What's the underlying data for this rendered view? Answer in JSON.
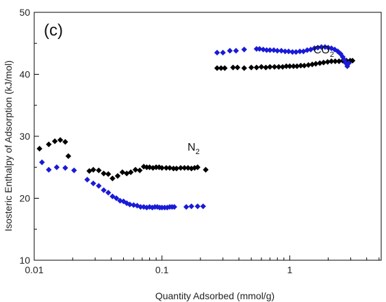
{
  "chart_data": {
    "type": "scatter",
    "panel_label": "(c)",
    "xlabel": "Quantity Adsorbed (mmol/g)",
    "ylabel": "Isosteric Enthalpy of Adsorption (kJ/mol)",
    "xscale": "log",
    "xlim": [
      0.01,
      5.2
    ],
    "ylim": [
      10,
      50
    ],
    "x_ticks": [
      0.01,
      0.1,
      1
    ],
    "x_tick_labels": [
      "0.01",
      "0.1",
      "1"
    ],
    "y_ticks": [
      10,
      20,
      30,
      40,
      50
    ],
    "y_tick_labels": [
      "10",
      "20",
      "30",
      "40",
      "50"
    ],
    "grid": false,
    "legend": "none",
    "annotations": [
      {
        "main": "CO",
        "sub": "2"
      },
      {
        "main": "N",
        "sub": "2"
      }
    ],
    "series": [
      {
        "color": "#000000",
        "marker": "diamond",
        "points": [
          [
            0.011,
            28.0
          ],
          [
            0.013,
            28.7
          ],
          [
            0.0145,
            29.2
          ],
          [
            0.016,
            29.4
          ],
          [
            0.0175,
            29.1
          ],
          [
            0.0185,
            26.8
          ],
          [
            0.027,
            24.4
          ],
          [
            0.029,
            24.6
          ],
          [
            0.032,
            24.5
          ],
          [
            0.035,
            24.0
          ],
          [
            0.038,
            23.9
          ],
          [
            0.041,
            23.2
          ],
          [
            0.045,
            23.6
          ],
          [
            0.049,
            24.2
          ],
          [
            0.053,
            24.0
          ],
          [
            0.057,
            24.2
          ],
          [
            0.062,
            24.6
          ],
          [
            0.067,
            24.5
          ],
          [
            0.072,
            25.1
          ],
          [
            0.076,
            25.0
          ],
          [
            0.08,
            25.0
          ],
          [
            0.085,
            24.9
          ],
          [
            0.09,
            25.0
          ],
          [
            0.095,
            25.0
          ],
          [
            0.1,
            24.9
          ],
          [
            0.108,
            24.9
          ],
          [
            0.115,
            24.9
          ],
          [
            0.123,
            24.8
          ],
          [
            0.13,
            24.8
          ],
          [
            0.14,
            24.9
          ],
          [
            0.15,
            24.9
          ],
          [
            0.16,
            24.9
          ],
          [
            0.17,
            24.8
          ],
          [
            0.18,
            24.9
          ],
          [
            0.19,
            25.0
          ],
          [
            0.22,
            24.6
          ],
          [
            0.27,
            41.0
          ],
          [
            0.29,
            41.0
          ],
          [
            0.31,
            41.0
          ],
          [
            0.36,
            41.1
          ],
          [
            0.39,
            41.1
          ],
          [
            0.44,
            41.0
          ],
          [
            0.5,
            41.1
          ],
          [
            0.55,
            41.1
          ],
          [
            0.6,
            41.2
          ],
          [
            0.65,
            41.1
          ],
          [
            0.7,
            41.2
          ],
          [
            0.76,
            41.2
          ],
          [
            0.82,
            41.2
          ],
          [
            0.88,
            41.2
          ],
          [
            0.94,
            41.3
          ],
          [
            1.0,
            41.3
          ],
          [
            1.07,
            41.3
          ],
          [
            1.14,
            41.3
          ],
          [
            1.22,
            41.4
          ],
          [
            1.3,
            41.4
          ],
          [
            1.4,
            41.5
          ],
          [
            1.5,
            41.6
          ],
          [
            1.6,
            41.7
          ],
          [
            1.72,
            41.8
          ],
          [
            1.84,
            41.9
          ],
          [
            1.98,
            42.0
          ],
          [
            2.12,
            42.1
          ],
          [
            2.27,
            42.1
          ],
          [
            2.43,
            42.1
          ],
          [
            2.6,
            42.2
          ],
          [
            2.78,
            42.2
          ],
          [
            2.97,
            42.2
          ],
          [
            3.1,
            42.2
          ]
        ]
      },
      {
        "color": "#1a1ad8",
        "marker": "diamond",
        "points": [
          [
            0.0115,
            25.8
          ],
          [
            0.013,
            24.6
          ],
          [
            0.015,
            25.0
          ],
          [
            0.0175,
            24.9
          ],
          [
            0.0205,
            24.5
          ],
          [
            0.026,
            23.0
          ],
          [
            0.029,
            22.4
          ],
          [
            0.032,
            22.0
          ],
          [
            0.035,
            21.3
          ],
          [
            0.038,
            20.9
          ],
          [
            0.041,
            20.3
          ],
          [
            0.044,
            20.0
          ],
          [
            0.047,
            19.6
          ],
          [
            0.05,
            19.5
          ],
          [
            0.053,
            19.2
          ],
          [
            0.056,
            19.0
          ],
          [
            0.06,
            18.9
          ],
          [
            0.064,
            18.8
          ],
          [
            0.068,
            18.6
          ],
          [
            0.072,
            18.6
          ],
          [
            0.076,
            18.5
          ],
          [
            0.08,
            18.6
          ],
          [
            0.084,
            18.5
          ],
          [
            0.088,
            18.6
          ],
          [
            0.092,
            18.6
          ],
          [
            0.096,
            18.5
          ],
          [
            0.1,
            18.5
          ],
          [
            0.105,
            18.5
          ],
          [
            0.11,
            18.5
          ],
          [
            0.115,
            18.6
          ],
          [
            0.12,
            18.6
          ],
          [
            0.125,
            18.6
          ],
          [
            0.155,
            18.6
          ],
          [
            0.17,
            18.7
          ],
          [
            0.19,
            18.7
          ],
          [
            0.21,
            18.7
          ],
          [
            0.27,
            43.5
          ],
          [
            0.3,
            43.5
          ],
          [
            0.34,
            43.8
          ],
          [
            0.38,
            43.8
          ],
          [
            0.44,
            44.0
          ],
          [
            0.55,
            44.1
          ],
          [
            0.58,
            44.1
          ],
          [
            0.62,
            44.0
          ],
          [
            0.66,
            43.9
          ],
          [
            0.7,
            43.9
          ],
          [
            0.75,
            43.9
          ],
          [
            0.8,
            43.8
          ],
          [
            0.86,
            43.8
          ],
          [
            0.92,
            43.7
          ],
          [
            0.98,
            43.7
          ],
          [
            1.05,
            43.6
          ],
          [
            1.12,
            43.6
          ],
          [
            1.2,
            43.7
          ],
          [
            1.28,
            43.7
          ],
          [
            1.37,
            43.9
          ],
          [
            1.46,
            44.0
          ],
          [
            1.56,
            44.2
          ],
          [
            1.66,
            44.3
          ],
          [
            1.77,
            44.4
          ],
          [
            1.89,
            44.4
          ],
          [
            2.0,
            44.3
          ],
          [
            2.12,
            44.2
          ],
          [
            2.25,
            44.0
          ],
          [
            2.38,
            43.7
          ],
          [
            2.5,
            43.3
          ],
          [
            2.6,
            42.8
          ],
          [
            2.68,
            42.3
          ],
          [
            2.75,
            41.8
          ],
          [
            2.82,
            41.3
          ],
          [
            2.9,
            41.8
          ]
        ]
      }
    ]
  }
}
